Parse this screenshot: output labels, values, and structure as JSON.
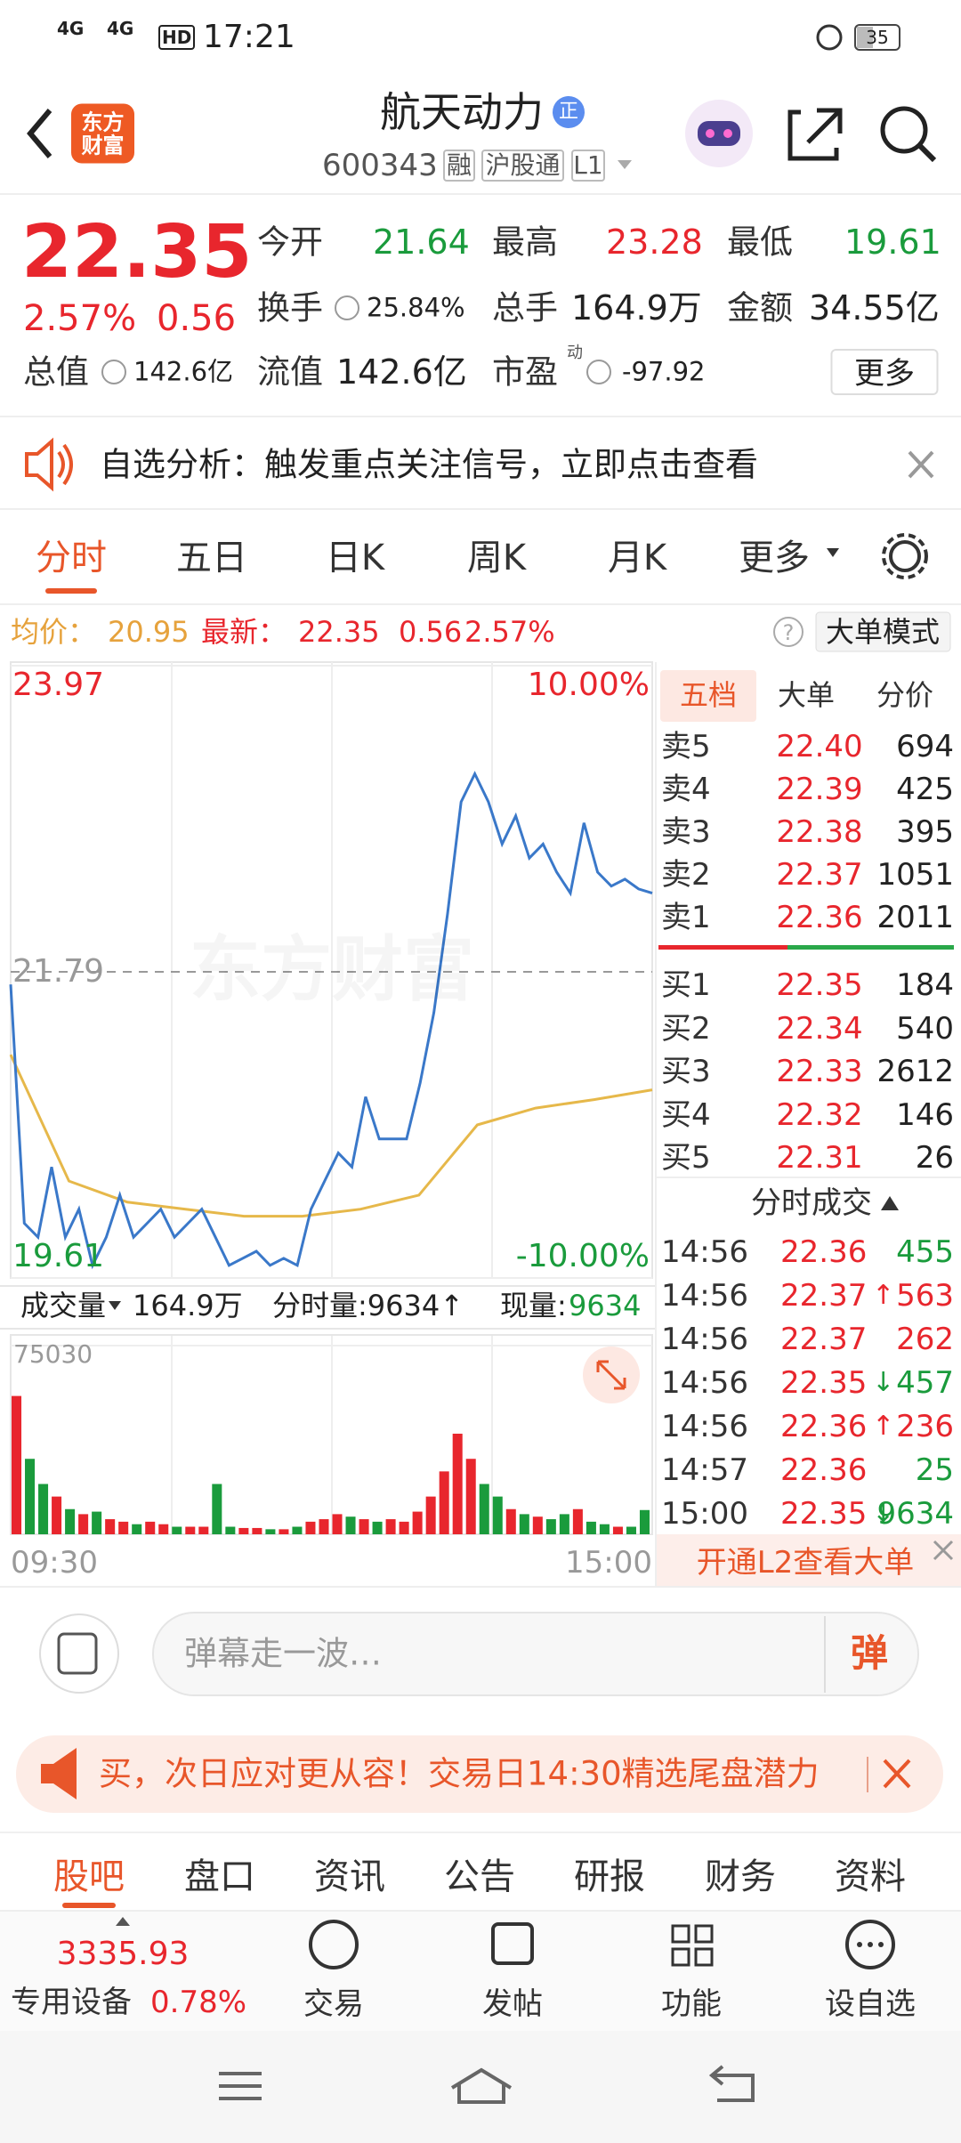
{
  "status_bar": {
    "network": [
      "4G",
      "4G"
    ],
    "hd": "HD",
    "time": "17:21",
    "battery": "35"
  },
  "header": {
    "logo": "东方财富",
    "title": "航天动力",
    "badge": "正",
    "code": "600343",
    "tags": [
      "融",
      "沪股通",
      "L1"
    ]
  },
  "quote": {
    "price": "22.35",
    "change_pct": "2.57%",
    "change": "0.56",
    "stats": [
      {
        "label": "今开",
        "value": "21.64",
        "color": "#1a9b3c"
      },
      {
        "label": "最高",
        "value": "23.28",
        "color": "#e8262d"
      },
      {
        "label": "最低",
        "value": "19.61",
        "color": "#1a9b3c"
      },
      {
        "label": "换手",
        "value": "25.84%",
        "color": "#222222"
      },
      {
        "label": "总手",
        "value": "164.9万",
        "color": "#222222"
      },
      {
        "label": "金额",
        "value": "34.55亿",
        "color": "#222222"
      },
      {
        "label": "总值",
        "value": "142.6亿",
        "color": "#222222"
      },
      {
        "label": "流值",
        "value": "142.6亿",
        "color": "#222222"
      },
      {
        "label": "市盈",
        "value": "-97.92",
        "color": "#222222"
      }
    ],
    "pe_tag": "动",
    "more": "更多"
  },
  "notice": "自选分析：触发重点关注信号，立即点击查看",
  "tabs": [
    "分时",
    "五日",
    "日K",
    "周K",
    "月K",
    "更多"
  ],
  "info": {
    "avg_label": "均价：",
    "avg": "20.95",
    "latest_label": "最新：",
    "latest": "22.35",
    "change": "0.56",
    "pct": "2.57%",
    "help": "?",
    "mode": "大单模式"
  },
  "intraday": {
    "ylim": [
      19.61,
      23.97
    ],
    "prev_close": 21.79,
    "pct_top": "10.00%",
    "pct_bottom": "-10.00%",
    "watermark": "东方财富",
    "price": [
      21.7,
      20.0,
      19.9,
      20.4,
      19.9,
      20.1,
      19.7,
      19.9,
      20.2,
      19.9,
      20.0,
      20.1,
      19.9,
      20.0,
      20.1,
      19.9,
      19.7,
      19.75,
      19.8,
      19.7,
      19.75,
      19.7,
      20.1,
      20.3,
      20.5,
      20.4,
      20.9,
      20.6,
      20.6,
      20.6,
      21.0,
      21.5,
      22.2,
      23.0,
      23.2,
      23.0,
      22.7,
      22.9,
      22.6,
      22.7,
      22.5,
      22.35,
      22.85,
      22.5,
      22.4,
      22.45,
      22.38,
      22.35
    ],
    "avg": [
      21.2,
      20.3,
      20.15,
      20.1,
      20.05,
      20.05,
      20.1,
      20.2,
      20.7,
      20.82,
      20.88,
      20.95
    ],
    "volume_label": "成交量",
    "volume_total": "164.9万",
    "tick_volume": "分时量:9634↑",
    "current_label": "现量:",
    "current": "9634",
    "volume_max": 75030,
    "volume": [
      55000,
      30000,
      20000,
      15000,
      10000,
      8000,
      9000,
      6000,
      5000,
      4000,
      5000,
      4000,
      3000,
      3000,
      3000,
      20000,
      3000,
      2500,
      2500,
      2000,
      2000,
      3000,
      5000,
      6000,
      8000,
      7000,
      6000,
      5000,
      6000,
      5000,
      9000,
      15000,
      25000,
      40000,
      30000,
      20000,
      15000,
      10000,
      8000,
      7000,
      6000,
      8000,
      10000,
      5000,
      4000,
      3000,
      3000,
      9634
    ],
    "x_labels": [
      "09:30",
      "15:00"
    ]
  },
  "order_book": {
    "tabs": [
      "五档",
      "大单",
      "分价"
    ],
    "asks": [
      {
        "label": "卖5",
        "price": "22.40",
        "vol": "694"
      },
      {
        "label": "卖4",
        "price": "22.39",
        "vol": "425"
      },
      {
        "label": "卖3",
        "price": "22.38",
        "vol": "395"
      },
      {
        "label": "卖2",
        "price": "22.37",
        "vol": "1051"
      },
      {
        "label": "卖1",
        "price": "22.36",
        "vol": "2011"
      }
    ],
    "bids": [
      {
        "label": "买1",
        "price": "22.35",
        "vol": "184"
      },
      {
        "label": "买2",
        "price": "22.34",
        "vol": "540"
      },
      {
        "label": "买3",
        "price": "22.33",
        "vol": "2612"
      },
      {
        "label": "买4",
        "price": "22.32",
        "vol": "146"
      },
      {
        "label": "买5",
        "price": "22.31",
        "vol": "26"
      }
    ],
    "trades_title": "分时成交",
    "trades": [
      {
        "time": "14:56",
        "price": "22.36",
        "vol": "455",
        "color": "#1a9b3c"
      },
      {
        "time": "14:56",
        "price": "22.37",
        "arrow": "↑",
        "vol": "563",
        "color": "#e8262d"
      },
      {
        "time": "14:56",
        "price": "22.37",
        "vol": "262",
        "color": "#e8262d"
      },
      {
        "time": "14:56",
        "price": "22.35",
        "arrow": "↓",
        "vol": "457",
        "color": "#1a9b3c"
      },
      {
        "time": "14:56",
        "price": "22.36",
        "arrow": "↑",
        "vol": "236",
        "color": "#e8262d"
      },
      {
        "time": "14:57",
        "price": "22.36",
        "vol": "25",
        "color": "#1a9b3c"
      },
      {
        "time": "15:00",
        "price": "22.35",
        "arrow": "↓",
        "vol": "9634",
        "color": "#1a9b3c"
      }
    ],
    "l2": "开通L2查看大单"
  },
  "comment": {
    "placeholder": "弹幕走一波…",
    "button": "弹"
  },
  "ad": "买，次日应对更从容！交易日14:30精选尾盘潜力",
  "bottom_tabs": [
    "股吧",
    "盘口",
    "资讯",
    "公告",
    "研报",
    "财务",
    "资料"
  ],
  "nav": {
    "index": "3335.93",
    "sector": "专用设备",
    "sector_pct": "0.78%",
    "items": [
      "交易",
      "发帖",
      "功能",
      "设自选"
    ]
  }
}
